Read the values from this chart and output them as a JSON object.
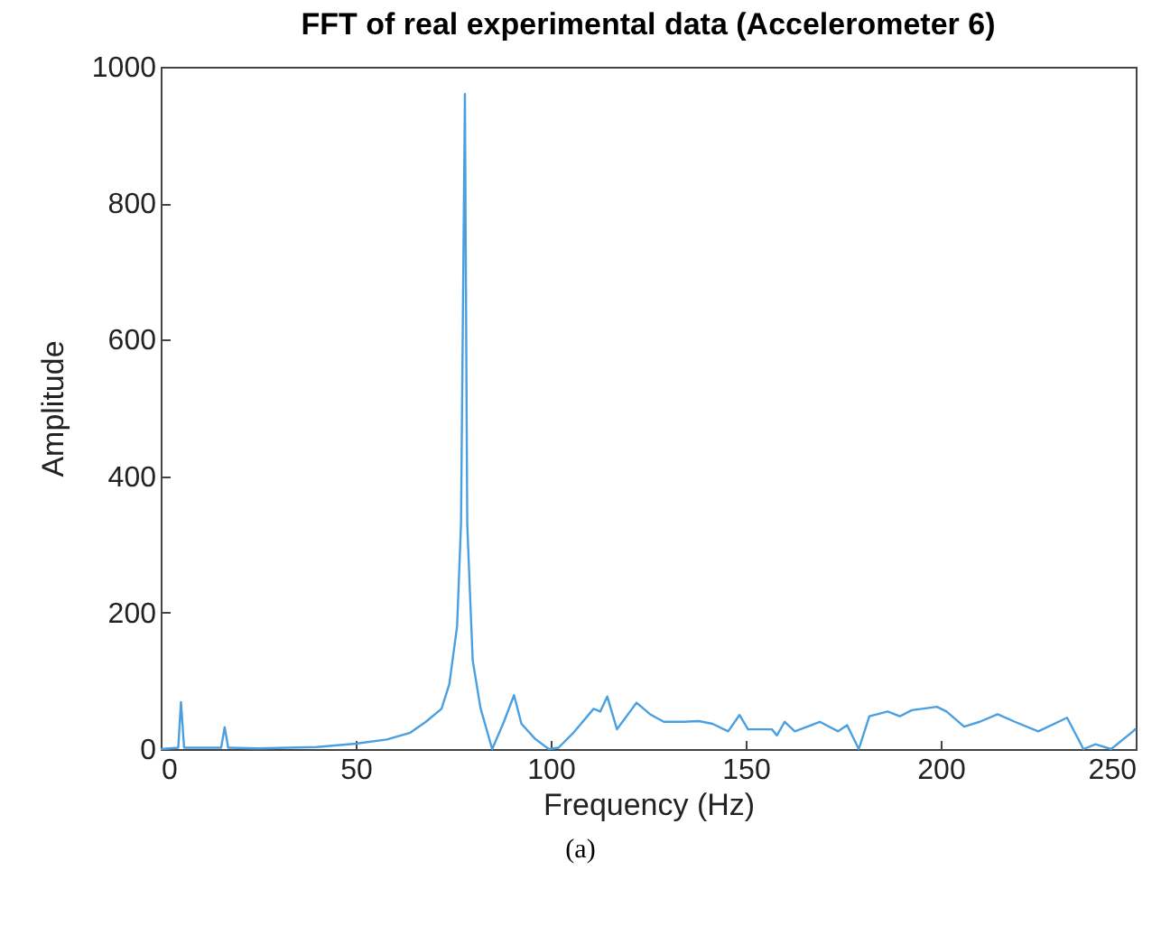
{
  "chart_data": {
    "type": "line",
    "title": "FFT of real experimental data (Accelerometer 6)",
    "xlabel": "Frequency (Hz)",
    "ylabel": "Amplitude",
    "annotations": [
      "(a)"
    ],
    "xlim": [
      0,
      250
    ],
    "xticks": [
      0,
      50,
      100,
      150,
      200,
      250
    ],
    "ylim": [
      0,
      1000
    ],
    "yticks": [
      0,
      200,
      400,
      600,
      800,
      1000
    ],
    "grid": false,
    "series": [
      {
        "color": "#4a9fe0",
        "x": [
          0,
          4.5,
          5.2,
          6,
          15.5,
          16.4,
          17.3,
          25,
          40,
          50,
          58,
          64,
          68,
          72,
          74,
          76,
          77,
          78,
          78.6,
          79.5,
          80,
          82,
          85,
          88,
          90.6,
          92.5,
          96,
          99.5,
          102,
          106,
          111,
          112.7,
          114.5,
          117,
          122,
          125.5,
          129,
          134,
          138,
          141.5,
          145.5,
          148.4,
          150.6,
          156.7,
          158,
          160,
          162.6,
          169,
          173.7,
          176,
          179,
          181.7,
          186.4,
          189.5,
          192.6,
          199,
          201.5,
          206,
          210,
          214.6,
          219,
          225,
          232.4,
          236.6,
          239.7,
          243.7,
          249.3,
          250
        ],
        "values": [
          0,
          2,
          69,
          2,
          2,
          32,
          2,
          1,
          3,
          8,
          14,
          24,
          40,
          59,
          95,
          180,
          330,
          960,
          330,
          200,
          130,
          60,
          0,
          40,
          79,
          37,
          15,
          0,
          2,
          25,
          59,
          55,
          77,
          29,
          68,
          51,
          40,
          40,
          41,
          37,
          26,
          50,
          29,
          29,
          20,
          40,
          26,
          40,
          26,
          35,
          0,
          48,
          55,
          48,
          57,
          62,
          55,
          33,
          40,
          51,
          40,
          26,
          46,
          0,
          7,
          0,
          26,
          30
        ]
      }
    ]
  }
}
